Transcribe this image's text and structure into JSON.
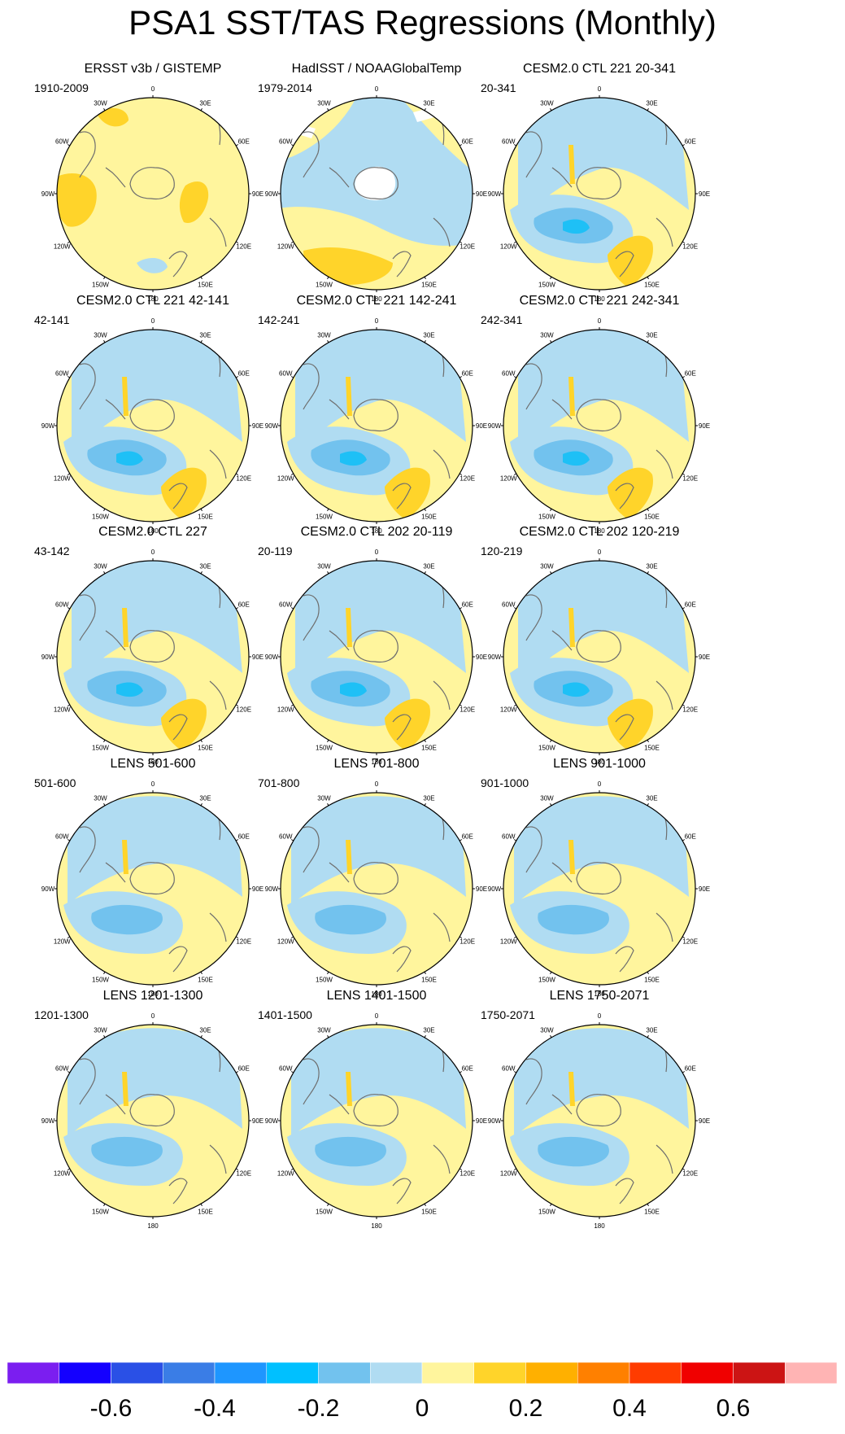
{
  "title": "PSA1 SST/TAS Regressions (Monthly)",
  "chart_data": {
    "type": "polar-stereographic contour map panels",
    "projection": "south polar stereographic",
    "variable": "PSA1 SST/TAS regression",
    "longitude_labels": [
      "0",
      "30E",
      "60E",
      "90E",
      "120E",
      "150E",
      "180",
      "150W",
      "120W",
      "90W",
      "60W",
      "30W"
    ],
    "colors": {
      "ocean_missing": "#ffffff",
      "pos1": "#fff59d",
      "pos2": "#ffd42a",
      "pos3": "#ffb000",
      "pos4": "#ff8000",
      "neg1": "#b0dcf2",
      "neg2": "#72c2ee",
      "neg3": "#1ec0f6",
      "coast": "#6e6e6e"
    },
    "colorbar": {
      "colors": [
        "#7b1ef0",
        "#1400ff",
        "#2a50e6",
        "#3a7de6",
        "#1e96ff",
        "#00c0ff",
        "#72c2ee",
        "#b0dcf2",
        "#fff59d",
        "#ffd42a",
        "#ffb000",
        "#ff8000",
        "#ff3c00",
        "#f00000",
        "#cc1414",
        "#ffb4b4"
      ],
      "labels": [
        "-0.6",
        "-0.4",
        "-0.2",
        "0",
        "0.2",
        "0.4",
        "0.6"
      ],
      "label_values": [
        -0.6,
        -0.4,
        -0.2,
        0,
        0.2,
        0.4,
        0.6
      ]
    },
    "panels": [
      {
        "title": "ERSST v3b / GISTEMP",
        "range": "1910-2009",
        "pattern": "obs1"
      },
      {
        "title": "HadISST / NOAAGlobalTemp",
        "range": "1979-2014",
        "pattern": "obs2"
      },
      {
        "title": "CESM2.0 CTL 221 20-341",
        "range": "20-341",
        "pattern": "model"
      },
      {
        "title": "CESM2.0 CTL 221 42-141",
        "range": "42-141",
        "pattern": "model"
      },
      {
        "title": "CESM2.0 CTL 221 142-241",
        "range": "142-241",
        "pattern": "model"
      },
      {
        "title": "CESM2.0 CTL 221 242-341",
        "range": "242-341",
        "pattern": "model"
      },
      {
        "title": "CESM2.0 CTL 227",
        "range": "43-142",
        "pattern": "model"
      },
      {
        "title": "CESM2.0 CTL 202 20-119",
        "range": "20-119",
        "pattern": "model"
      },
      {
        "title": "CESM2.0 CTL 202 120-219",
        "range": "120-219",
        "pattern": "model"
      },
      {
        "title": "LENS 501-600",
        "range": "501-600",
        "pattern": "lens"
      },
      {
        "title": "LENS 701-800",
        "range": "701-800",
        "pattern": "lens"
      },
      {
        "title": "LENS 901-1000",
        "range": "901-1000",
        "pattern": "lens"
      },
      {
        "title": "LENS 1201-1300",
        "range": "1201-1300",
        "pattern": "lens"
      },
      {
        "title": "LENS 1401-1500",
        "range": "1401-1500",
        "pattern": "lens"
      },
      {
        "title": "LENS 1750-2071",
        "range": "1750-2071",
        "pattern": "lens"
      }
    ]
  }
}
